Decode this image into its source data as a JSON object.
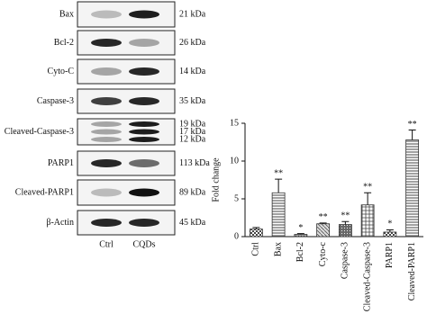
{
  "blot": {
    "rows": [
      {
        "label": "Bax",
        "kda": [
          "21 kDa"
        ]
      },
      {
        "label": "Bcl-2",
        "kda": [
          "26 kDa"
        ]
      },
      {
        "label": "Cyto-C",
        "kda": [
          "14 kDa"
        ]
      },
      {
        "label": "Caspase-3",
        "kda": [
          "35 kDa"
        ]
      },
      {
        "label": "Cleaved-Caspase-3",
        "kda": [
          "19 kDa",
          "17 kDa",
          "12 kDa"
        ]
      },
      {
        "label": "PARP1",
        "kda": [
          "113 kDa"
        ]
      },
      {
        "label": "Cleaved-PARP1",
        "kda": [
          "89 kDa"
        ]
      },
      {
        "label": "β-Actin",
        "kda": [
          "45 kDa"
        ]
      }
    ],
    "lanes": [
      "Ctrl",
      "CQDs"
    ]
  },
  "chart_data": {
    "type": "bar",
    "ylabel": "Fold change",
    "categories": [
      "Ctrl",
      "Bax",
      "Bcl-2",
      "Cyto-c",
      "Caspase-3",
      "Cleaved-Caspase-3",
      "PARP1",
      "Cleaved-PARP1"
    ],
    "values": [
      1.0,
      5.8,
      0.3,
      1.7,
      1.6,
      4.2,
      0.6,
      12.8
    ],
    "errors": [
      0.2,
      1.8,
      0.1,
      0.1,
      0.4,
      1.6,
      0.3,
      1.3
    ],
    "significance": [
      null,
      "**",
      "*",
      "**",
      "**",
      "**",
      "*",
      "**"
    ],
    "color": "#333333",
    "ylim": [
      0,
      15
    ],
    "yticks": [
      0,
      5,
      10,
      15
    ]
  }
}
